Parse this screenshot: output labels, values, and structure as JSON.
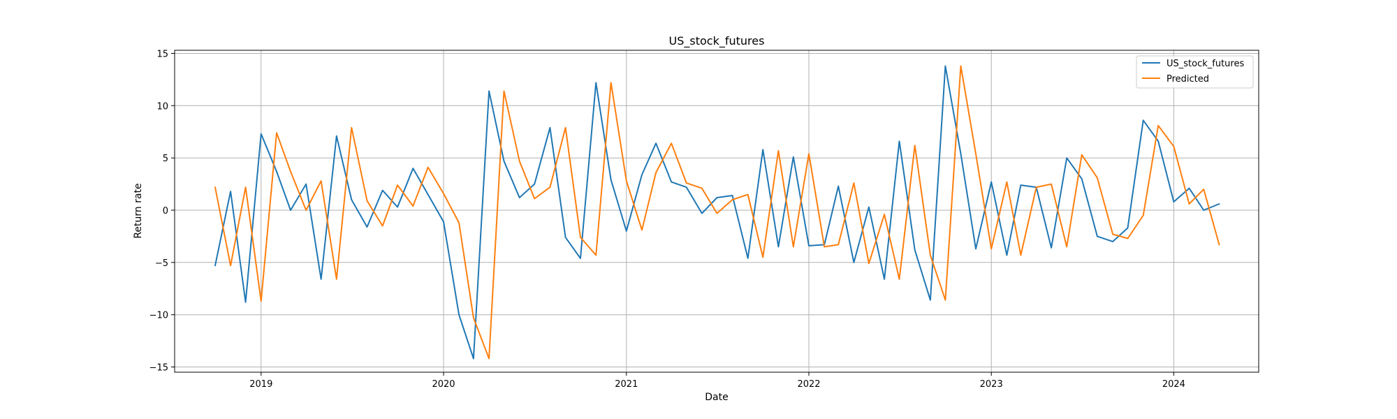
{
  "chart_data": {
    "type": "line",
    "title": "US_stock_futures",
    "xlabel": "Date",
    "ylabel": "Return rate",
    "x_type": "date",
    "xlim": [
      "2018-07-12",
      "2024-06-19"
    ],
    "ylim": [
      -15.5,
      15.3
    ],
    "x_ticks": [
      "2019-01-01",
      "2020-01-01",
      "2021-01-01",
      "2022-01-01",
      "2023-01-01",
      "2024-01-01"
    ],
    "x_tick_labels": [
      "2019",
      "2020",
      "2021",
      "2022",
      "2023",
      "2024"
    ],
    "y_ticks": [
      -15,
      -10,
      -5,
      0,
      5,
      10,
      15
    ],
    "y_tick_labels": [
      "−15",
      "−10",
      "−5",
      "0",
      "5",
      "10",
      "15"
    ],
    "grid": true,
    "legend_position": "top-right",
    "x": [
      "2018-10",
      "2018-11",
      "2018-12",
      "2019-01",
      "2019-02",
      "2019-03",
      "2019-04",
      "2019-05",
      "2019-06",
      "2019-07",
      "2019-08",
      "2019-09",
      "2019-10",
      "2019-11",
      "2019-12",
      "2020-01",
      "2020-02",
      "2020-03",
      "2020-04",
      "2020-05",
      "2020-06",
      "2020-07",
      "2020-08",
      "2020-09",
      "2020-10",
      "2020-11",
      "2020-12",
      "2021-01",
      "2021-02",
      "2021-03",
      "2021-04",
      "2021-05",
      "2021-06",
      "2021-07",
      "2021-08",
      "2021-09",
      "2021-10",
      "2021-11",
      "2021-12",
      "2022-01",
      "2022-02",
      "2022-03",
      "2022-04",
      "2022-05",
      "2022-06",
      "2022-07",
      "2022-08",
      "2022-09",
      "2022-10",
      "2022-11",
      "2022-12",
      "2023-01",
      "2023-02",
      "2023-03",
      "2023-04",
      "2023-05",
      "2023-06",
      "2023-07",
      "2023-08",
      "2023-09",
      "2023-10",
      "2023-11",
      "2023-12",
      "2024-01",
      "2024-02",
      "2024-03",
      "2024-04"
    ],
    "series": [
      {
        "name": "US_stock_futures",
        "color": "#1f77b4",
        "values": [
          -5.3,
          1.8,
          -8.8,
          7.3,
          3.7,
          0.0,
          2.5,
          -6.6,
          7.1,
          1.0,
          -1.6,
          1.9,
          0.3,
          4.0,
          1.5,
          -1.1,
          -10.0,
          -14.2,
          11.4,
          4.7,
          1.2,
          2.5,
          7.9,
          -2.6,
          -4.6,
          12.2,
          2.9,
          -2.0,
          3.4,
          6.4,
          2.7,
          2.2,
          -0.3,
          1.2,
          1.4,
          -4.6,
          5.8,
          -3.5,
          5.1,
          -3.4,
          -3.3,
          2.3,
          -5.0,
          0.3,
          -6.6,
          6.6,
          -3.8,
          -8.6,
          13.8,
          5.4,
          -3.7,
          2.7,
          -4.3,
          2.4,
          2.2,
          -3.6,
          5.0,
          3.0,
          -2.5,
          -3.0,
          -1.7,
          8.6,
          6.6,
          0.8,
          2.1,
          0.0,
          0.6
        ]
      },
      {
        "name": "Predicted",
        "color": "#ff7f0e",
        "values": [
          2.2,
          -5.3,
          2.2,
          -8.7,
          7.4,
          3.7,
          0.0,
          2.8,
          -6.6,
          7.9,
          0.9,
          -1.5,
          2.4,
          0.4,
          4.1,
          1.6,
          -1.2,
          -10.3,
          -14.2,
          11.4,
          4.7,
          1.1,
          2.2,
          7.9,
          -2.6,
          -4.3,
          12.2,
          2.8,
          -1.9,
          3.6,
          6.4,
          2.6,
          2.1,
          -0.3,
          1.0,
          1.5,
          -4.5,
          5.7,
          -3.5,
          5.4,
          -3.5,
          -3.3,
          2.6,
          -5.1,
          -0.4,
          -6.6,
          6.2,
          -4.3,
          -8.6,
          13.8,
          5.4,
          -3.7,
          2.7,
          -4.3,
          2.2,
          2.5,
          -3.5,
          5.3,
          3.1,
          -2.3,
          -2.7,
          -0.5,
          8.1,
          6.1,
          0.6,
          2.0,
          -3.3
        ]
      }
    ]
  }
}
